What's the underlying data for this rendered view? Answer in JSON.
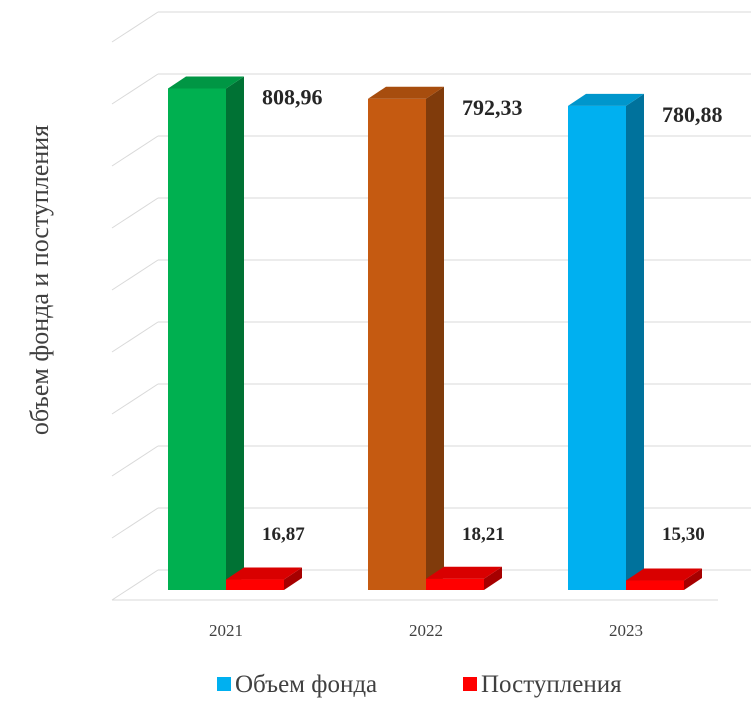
{
  "chart_data": {
    "type": "bar",
    "title": "",
    "xlabel": "",
    "ylabel": "объем фонда и поступления",
    "categories": [
      "2021",
      "2022",
      "2023"
    ],
    "series": [
      {
        "name": "Объем фонда",
        "values": [
          808.96,
          792.33,
          780.88
        ],
        "labels": [
          "808,96",
          "792,33",
          "780,88"
        ],
        "colors": [
          "#00B050",
          "#C55A11",
          "#00B0F0"
        ]
      },
      {
        "name": "Поступления",
        "values": [
          16.87,
          18.21,
          15.3
        ],
        "labels": [
          "16,87",
          "18,21",
          "15,30"
        ],
        "colors": [
          "#FF0000",
          "#FF0000",
          "#FF0000"
        ]
      }
    ],
    "ylim": [
      0,
      900
    ],
    "grid": true,
    "legend": "bottom",
    "legend_colors": [
      "#00B0F0",
      "#FF0000"
    ],
    "style": "3d-column"
  }
}
